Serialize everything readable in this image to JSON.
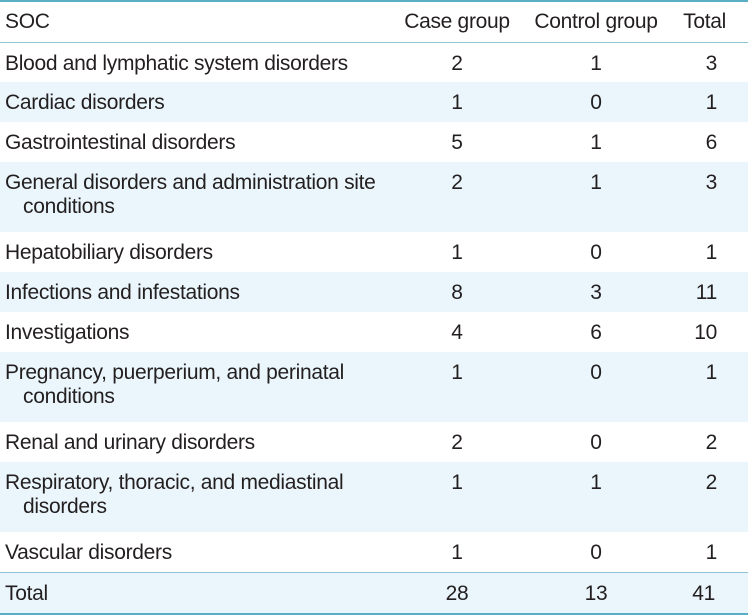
{
  "table": {
    "headers": {
      "soc": "SOC",
      "case": "Case group",
      "control": "Control group",
      "total": "Total"
    },
    "rows": [
      {
        "soc": "Blood and lymphatic system disorders",
        "case": "2",
        "control": "1",
        "total": "3"
      },
      {
        "soc": "Cardiac disorders",
        "case": "1",
        "control": "0",
        "total": "1"
      },
      {
        "soc": "Gastrointestinal disorders",
        "case": "5",
        "control": "1",
        "total": "6"
      },
      {
        "soc": "General disorders and administration site conditions",
        "case": "2",
        "control": "1",
        "total": "3"
      },
      {
        "soc": "Hepatobiliary disorders",
        "case": "1",
        "control": "0",
        "total": "1"
      },
      {
        "soc": "Infections and infestations",
        "case": "8",
        "control": "3",
        "total": "11"
      },
      {
        "soc": "Investigations",
        "case": "4",
        "control": "6",
        "total": "10"
      },
      {
        "soc": "Pregnancy, puerperium, and perinatal conditions",
        "case": "1",
        "control": "0",
        "total": "1"
      },
      {
        "soc": "Renal and urinary disorders",
        "case": "2",
        "control": "0",
        "total": "2"
      },
      {
        "soc": "Respiratory, thoracic, and mediastinal disorders",
        "case": "1",
        "control": "1",
        "total": "2"
      },
      {
        "soc": "Vascular disorders",
        "case": "1",
        "control": "0",
        "total": "1"
      }
    ],
    "footer": {
      "soc": "Total",
      "case": "28",
      "control": "13",
      "total": "41"
    },
    "colors": {
      "stripe": "#eaf6fb",
      "rule": "#5aaec4"
    }
  }
}
